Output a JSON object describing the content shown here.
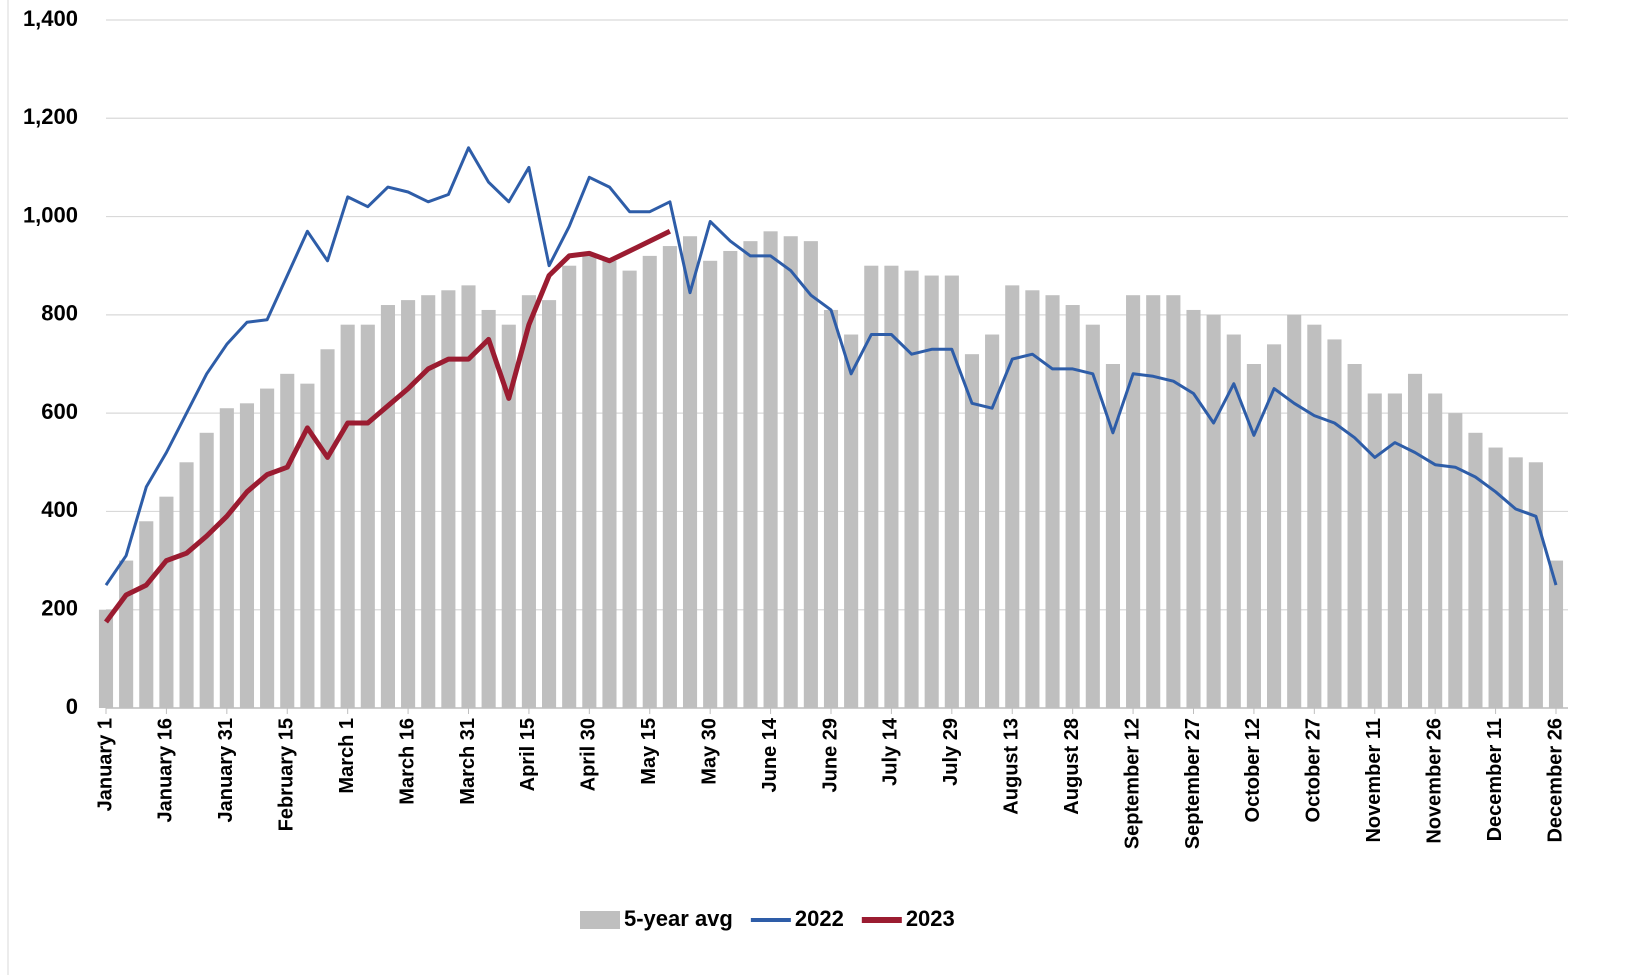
{
  "chart_data": {
    "type": "bar-line",
    "categories": [
      "January 1",
      null,
      null,
      "January 16",
      null,
      null,
      "January 31",
      null,
      null,
      "February 15",
      null,
      null,
      "March 1",
      null,
      null,
      "March 16",
      null,
      null,
      "March 31",
      null,
      null,
      "April 15",
      null,
      null,
      "April 30",
      null,
      null,
      "May 15",
      null,
      null,
      "May 30",
      null,
      null,
      "June 14",
      null,
      null,
      "June 29",
      null,
      null,
      "July 14",
      null,
      null,
      "July 29",
      null,
      null,
      "August 13",
      null,
      null,
      "August 28",
      null,
      null,
      "September 12",
      null,
      null,
      "September 27",
      null,
      null,
      "October 12",
      null,
      null,
      "October 27",
      null,
      null,
      "November 11",
      null,
      null,
      "November 26",
      null,
      null,
      "December 11",
      null,
      null,
      "December 26"
    ],
    "series": [
      {
        "name": "5-year avg",
        "kind": "bar",
        "color": "#bfbfbf",
        "values": [
          200,
          300,
          380,
          430,
          500,
          560,
          610,
          620,
          650,
          680,
          660,
          730,
          780,
          780,
          820,
          830,
          840,
          850,
          860,
          810,
          780,
          840,
          830,
          900,
          920,
          910,
          890,
          920,
          940,
          960,
          910,
          930,
          950,
          970,
          960,
          950,
          810,
          760,
          900,
          900,
          890,
          880,
          880,
          720,
          760,
          860,
          850,
          840,
          820,
          780,
          700,
          840,
          840,
          840,
          810,
          800,
          760,
          700,
          740,
          800,
          780,
          750,
          700,
          640,
          640,
          680,
          640,
          600,
          560,
          530,
          510,
          500,
          300
        ]
      },
      {
        "name": "2022",
        "kind": "line",
        "color": "#2e5da8",
        "values": [
          250,
          310,
          450,
          520,
          600,
          680,
          740,
          785,
          790,
          880,
          970,
          910,
          1040,
          1020,
          1060,
          1050,
          1030,
          1045,
          1140,
          1070,
          1030,
          1100,
          900,
          980,
          1080,
          1060,
          1010,
          1010,
          1030,
          845,
          990,
          950,
          920,
          920,
          890,
          840,
          810,
          680,
          760,
          760,
          720,
          730,
          730,
          620,
          610,
          710,
          720,
          690,
          690,
          680,
          560,
          680,
          675,
          665,
          640,
          580,
          660,
          555,
          650,
          620,
          595,
          580,
          550,
          510,
          540,
          520,
          495,
          490,
          470,
          440,
          405,
          390,
          250
        ]
      },
      {
        "name": "2023",
        "kind": "line",
        "color": "#9b1c31",
        "values": [
          175,
          230,
          250,
          300,
          315,
          350,
          390,
          440,
          475,
          490,
          570,
          510,
          580,
          580,
          615,
          650,
          690,
          710,
          710,
          750,
          630,
          780,
          880,
          920,
          925,
          910,
          930,
          950,
          970,
          null,
          null,
          null,
          null,
          null,
          null,
          null,
          null,
          null,
          null,
          null,
          null,
          null,
          null,
          null,
          null,
          null,
          null,
          null,
          null,
          null,
          null,
          null,
          null,
          null,
          null,
          null,
          null,
          null,
          null,
          null,
          null,
          null,
          null,
          null,
          null,
          null,
          null,
          null,
          null,
          null,
          null,
          null,
          null
        ]
      }
    ],
    "ylim": [
      0,
      1400
    ],
    "yticks": [
      0,
      200,
      400,
      600,
      800,
      {
        "value": 1000,
        "label": "1,000"
      },
      {
        "value": 1200,
        "label": "1,200"
      },
      {
        "value": 1400,
        "label": "1,400"
      }
    ],
    "grid": true,
    "legend": "bottom"
  }
}
